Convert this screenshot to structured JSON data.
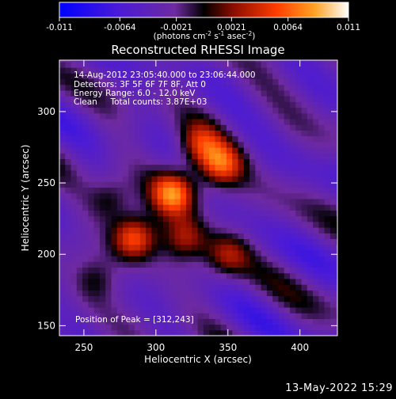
{
  "chart_data": {
    "type": "heatmap",
    "title": "Reconstructed RHESSI Image",
    "xlabel": "Heliocentric X (arcsec)",
    "ylabel": "Heliocentric Y (arcsec)",
    "xlim": [
      233,
      426
    ],
    "ylim": [
      143,
      336
    ],
    "x_ticks": [
      250,
      300,
      350,
      400
    ],
    "y_ticks": [
      150,
      200,
      250,
      300
    ],
    "colorbar": {
      "range": [
        -0.011,
        0.011
      ],
      "tick_values": [
        -0.011,
        -0.0064,
        -0.0021,
        0.0021,
        0.0064,
        0.011
      ],
      "tick_labels": [
        "-0.011",
        "-0.0064",
        "-0.0021",
        "0.0021",
        "0.0064",
        "0.011"
      ],
      "units_prefix": "(photons cm",
      "units_exp1": "-2",
      "units_mid1": " s",
      "units_exp2": "-1",
      "units_mid2": " asec",
      "units_exp3": "-2",
      "units_suffix": ")"
    },
    "annotations": [
      "14-Aug-2012 23:05:40.000 to 23:06:44.000",
      "Detectors: 3F 5F 6F 7F 8F, Att 0",
      "Energy Range: 6.0 - 12.0 keV",
      "Clean     Total counts: 3.87E+03"
    ],
    "peak_label": "Position of Peak = [312,243]",
    "peak": [
      312,
      243
    ],
    "sources": [
      {
        "x": 312,
        "y": 243,
        "peak": 0.0105
      },
      {
        "x": 285,
        "y": 212,
        "peak": 0.0092
      },
      {
        "x": 345,
        "y": 263,
        "peak": 0.0085
      },
      {
        "x": 330,
        "y": 277,
        "peak": 0.0065
      },
      {
        "x": 320,
        "y": 212,
        "peak": 0.006
      },
      {
        "x": 350,
        "y": 200,
        "peak": 0.0055
      },
      {
        "x": 268,
        "y": 238,
        "peak": 0.004
      },
      {
        "x": 258,
        "y": 182,
        "peak": 0.0032
      }
    ]
  },
  "timestamp": "13-May-2022 15:29"
}
